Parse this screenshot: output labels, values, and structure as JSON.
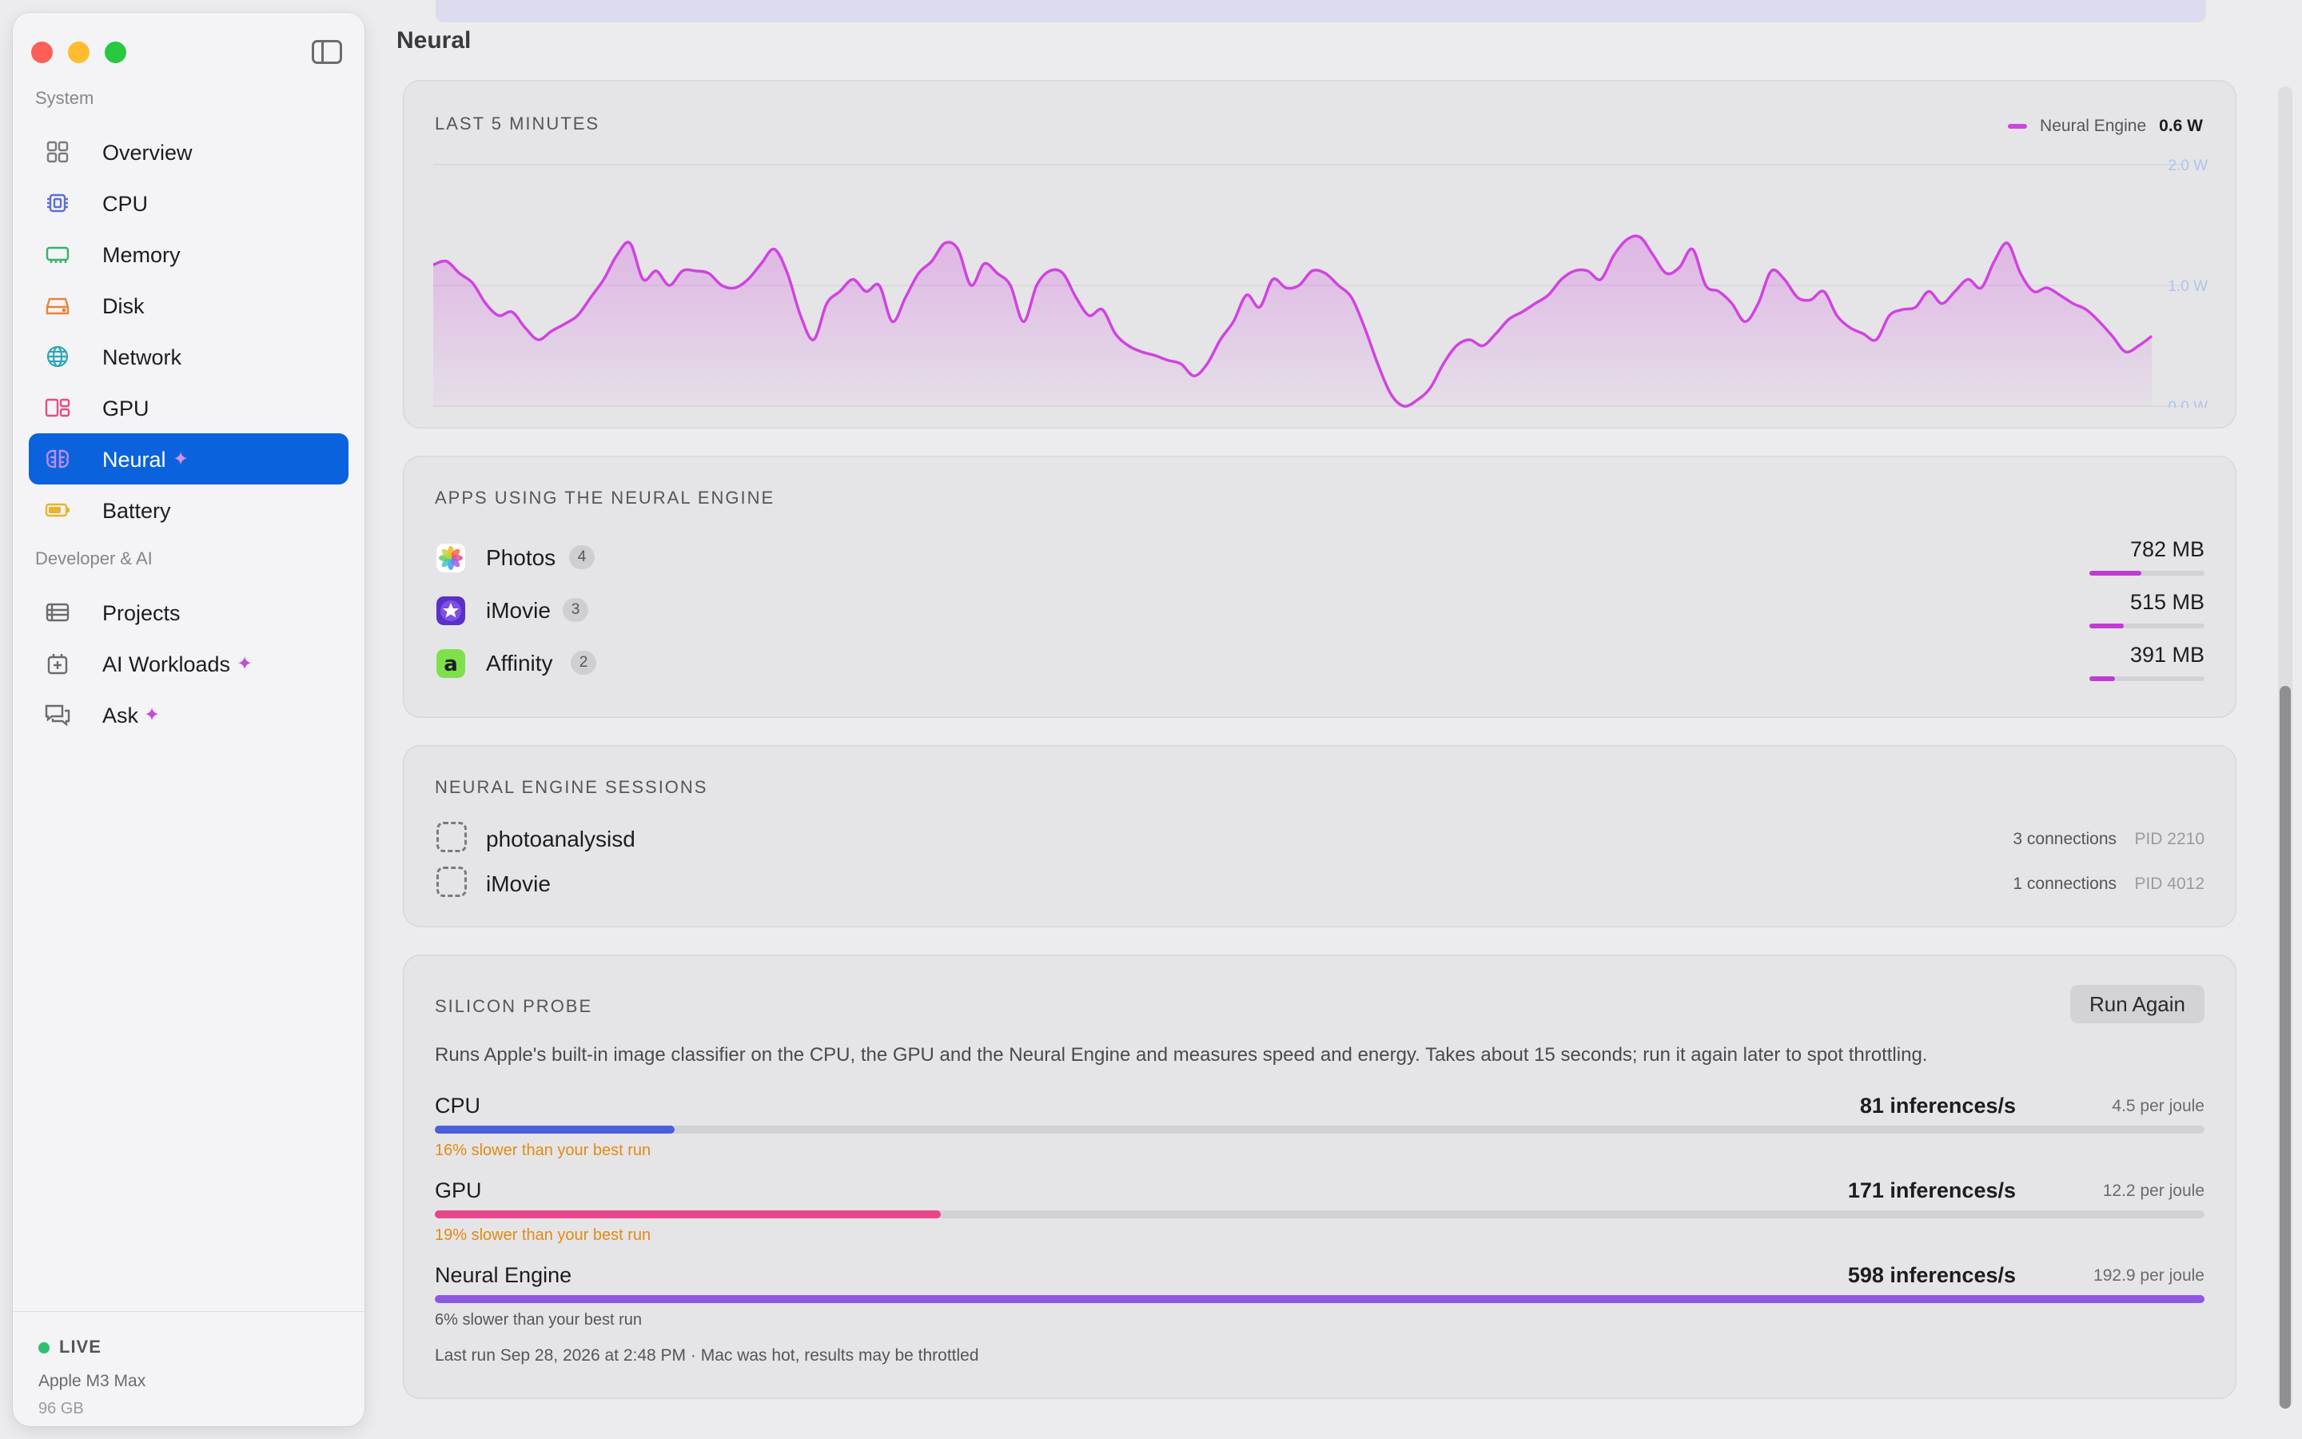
{
  "sidebar": {
    "sections": [
      {
        "label": "System",
        "items": [
          {
            "label": "Overview",
            "icon": "grid-icon",
            "color": "#7a7a80"
          },
          {
            "label": "CPU",
            "icon": "cpu-chip-icon",
            "color": "#5a6fd8"
          },
          {
            "label": "Memory",
            "icon": "memory-icon",
            "color": "#33b36b"
          },
          {
            "label": "Disk",
            "icon": "disk-icon",
            "color": "#e8843a"
          },
          {
            "label": "Network",
            "icon": "globe-icon",
            "color": "#2aa7b8"
          },
          {
            "label": "GPU",
            "icon": "gpu-icon",
            "color": "#e84a86"
          },
          {
            "label": "Neural",
            "icon": "brain-icon",
            "color": "#b070e8",
            "active": true,
            "sparkle": "✦"
          },
          {
            "label": "Battery",
            "icon": "battery-icon",
            "color": "#e8b52a"
          }
        ]
      },
      {
        "label": "Developer & AI",
        "items": [
          {
            "label": "Projects",
            "icon": "projects-icon",
            "color": "#6a6a70"
          },
          {
            "label": "AI Workloads",
            "icon": "ai-workloads-icon",
            "color": "#6a6a70",
            "sparkle": "✦"
          },
          {
            "label": "Ask",
            "icon": "chat-icon",
            "color": "#6a6a70",
            "sparkle": "✦"
          }
        ]
      }
    ],
    "footer": {
      "status": "LIVE",
      "chip": "Apple M3 Max",
      "memory": "96 GB"
    }
  },
  "page": {
    "title": "Neural"
  },
  "power_chart": {
    "title": "LAST 5 MINUTES",
    "legend": {
      "name": "Neural Engine",
      "value": "0.6 W"
    },
    "y_ticks": [
      "2.0 W",
      "1.0 W",
      "0.0 W"
    ],
    "color": "#d143e0"
  },
  "chart_data": {
    "type": "area",
    "title": "LAST 5 MINUTES",
    "unit": "W",
    "ylim": [
      0,
      2
    ],
    "yticks": [
      0,
      1,
      2
    ],
    "series": [
      {
        "name": "Neural Engine",
        "values": [
          1.17,
          1.2,
          1.1,
          1.02,
          0.85,
          0.75,
          0.78,
          0.65,
          0.55,
          0.62,
          0.68,
          0.75,
          0.9,
          1.05,
          1.25,
          1.35,
          1.05,
          1.12,
          1.0,
          1.12,
          1.12,
          1.1,
          1.0,
          0.98,
          1.05,
          1.18,
          1.3,
          1.1,
          0.75,
          0.55,
          0.85,
          0.95,
          1.05,
          0.95,
          1.0,
          0.7,
          0.9,
          1.1,
          1.2,
          1.35,
          1.3,
          1.0,
          1.18,
          1.1,
          1.0,
          0.7,
          1.0,
          1.12,
          1.1,
          0.9,
          0.75,
          0.8,
          0.6,
          0.5,
          0.45,
          0.42,
          0.38,
          0.35,
          0.25,
          0.35,
          0.55,
          0.7,
          0.92,
          0.82,
          1.05,
          0.98,
          1.0,
          1.12,
          1.1,
          1.0,
          0.9,
          0.65,
          0.35,
          0.1,
          0.0,
          0.05,
          0.15,
          0.35,
          0.5,
          0.55,
          0.5,
          0.6,
          0.72,
          0.78,
          0.85,
          0.92,
          1.05,
          1.12,
          1.12,
          1.05,
          1.25,
          1.38,
          1.4,
          1.25,
          1.1,
          1.15,
          1.3,
          1.0,
          0.95,
          0.85,
          0.7,
          0.85,
          1.12,
          1.05,
          0.9,
          0.88,
          0.95,
          0.75,
          0.65,
          0.6,
          0.55,
          0.75,
          0.8,
          0.82,
          0.95,
          0.85,
          0.95,
          1.05,
          0.98,
          1.2,
          1.35,
          1.1,
          0.95,
          0.98,
          0.92,
          0.85,
          0.8,
          0.7,
          0.58,
          0.45,
          0.5,
          0.58
        ]
      }
    ]
  },
  "apps": {
    "title": "APPS USING THE NEURAL ENGINE",
    "items": [
      {
        "name": "Photos",
        "count": "4",
        "memory": "782 MB",
        "fraction": 0.45,
        "icon": "photos-app-icon"
      },
      {
        "name": "iMovie",
        "count": "3",
        "memory": "515 MB",
        "fraction": 0.3,
        "icon": "imovie-app-icon"
      },
      {
        "name": "Affinity",
        "count": "2",
        "memory": "391 MB",
        "fraction": 0.22,
        "icon": "affinity-app-icon"
      }
    ]
  },
  "sessions": {
    "title": "NEURAL ENGINE SESSIONS",
    "items": [
      {
        "name": "photoanalysisd",
        "connections": "3 connections",
        "pid": "PID 2210"
      },
      {
        "name": "iMovie",
        "connections": "1 connections",
        "pid": "PID 4012"
      }
    ]
  },
  "probe": {
    "title": "SILICON PROBE",
    "button": "Run Again",
    "description": "Runs Apple's built-in image classifier on the CPU, the GPU and the Neural Engine and measures speed and energy. Takes about 15 seconds; run it again later to spot throttling.",
    "rows": [
      {
        "label": "CPU",
        "rate": "81 inferences/s",
        "joule": "4.5 per joule",
        "value": 81,
        "note": "16% slower than your best run",
        "color": "#4a5fd8",
        "note_color": "#e38a12"
      },
      {
        "label": "GPU",
        "rate": "171 inferences/s",
        "joule": "12.2 per joule",
        "value": 171,
        "note": "19% slower than your best run",
        "color": "#e8468a",
        "note_color": "#e38a12"
      },
      {
        "label": "Neural Engine",
        "rate": "598 inferences/s",
        "joule": "192.9 per joule",
        "value": 598,
        "note": "6% slower than your best run",
        "color": "#8e58e6",
        "note_color": "#55555a"
      }
    ],
    "footer": "Last run Sep 28, 2026 at 2:48 PM  · Mac was hot, results may be throttled"
  }
}
